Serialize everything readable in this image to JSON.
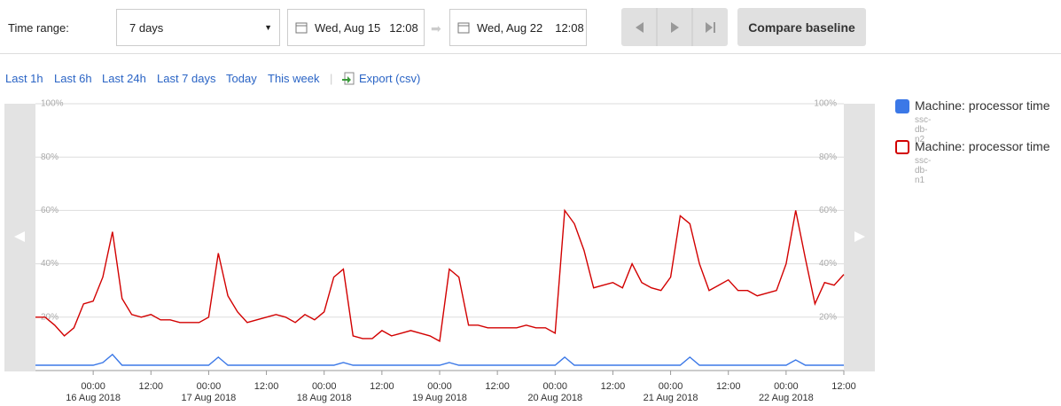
{
  "toolbar": {
    "time_range_label": "Time range:",
    "range_select": "7 days",
    "start_date": "Wed, Aug 15",
    "start_time": "12:08",
    "end_date": "Wed, Aug 22",
    "end_time": "12:08",
    "compare_button": "Compare baseline"
  },
  "quick_links": [
    "Last 1h",
    "Last 6h",
    "Last 24h",
    "Last 7 days",
    "Today",
    "This week"
  ],
  "export_link": "Export (csv)",
  "chart_data": {
    "type": "line",
    "x": [
      "2018-08-15 12:00",
      "2018-08-15 14:00",
      "2018-08-15 16:00",
      "2018-08-15 18:00",
      "2018-08-15 20:00",
      "2018-08-15 22:00",
      "2018-08-16 00:00",
      "2018-08-16 02:00",
      "2018-08-16 04:00",
      "2018-08-16 06:00",
      "2018-08-16 08:00",
      "2018-08-16 10:00",
      "2018-08-16 12:00",
      "2018-08-16 14:00",
      "2018-08-16 16:00",
      "2018-08-16 18:00",
      "2018-08-16 20:00",
      "2018-08-16 22:00",
      "2018-08-17 00:00",
      "2018-08-17 02:00",
      "2018-08-17 04:00",
      "2018-08-17 06:00",
      "2018-08-17 08:00",
      "2018-08-17 10:00",
      "2018-08-17 12:00",
      "2018-08-17 14:00",
      "2018-08-17 16:00",
      "2018-08-17 18:00",
      "2018-08-17 20:00",
      "2018-08-17 22:00",
      "2018-08-18 00:00",
      "2018-08-18 02:00",
      "2018-08-18 04:00",
      "2018-08-18 06:00",
      "2018-08-18 08:00",
      "2018-08-18 10:00",
      "2018-08-18 12:00",
      "2018-08-18 14:00",
      "2018-08-18 16:00",
      "2018-08-18 18:00",
      "2018-08-18 20:00",
      "2018-08-18 22:00",
      "2018-08-19 00:00",
      "2018-08-19 02:00",
      "2018-08-19 04:00",
      "2018-08-19 06:00",
      "2018-08-19 08:00",
      "2018-08-19 10:00",
      "2018-08-19 12:00",
      "2018-08-19 14:00",
      "2018-08-19 16:00",
      "2018-08-19 18:00",
      "2018-08-19 20:00",
      "2018-08-19 22:00",
      "2018-08-20 00:00",
      "2018-08-20 02:00",
      "2018-08-20 04:00",
      "2018-08-20 06:00",
      "2018-08-20 08:00",
      "2018-08-20 10:00",
      "2018-08-20 12:00",
      "2018-08-20 14:00",
      "2018-08-20 16:00",
      "2018-08-20 18:00",
      "2018-08-20 20:00",
      "2018-08-20 22:00",
      "2018-08-21 00:00",
      "2018-08-21 02:00",
      "2018-08-21 04:00",
      "2018-08-21 06:00",
      "2018-08-21 08:00",
      "2018-08-21 10:00",
      "2018-08-21 12:00",
      "2018-08-21 14:00",
      "2018-08-21 16:00",
      "2018-08-21 18:00",
      "2018-08-21 20:00",
      "2018-08-21 22:00",
      "2018-08-22 00:00",
      "2018-08-22 02:00",
      "2018-08-22 04:00",
      "2018-08-22 06:00",
      "2018-08-22 08:00",
      "2018-08-22 10:00",
      "2018-08-22 12:00"
    ],
    "series": [
      {
        "name": "Machine: processor time",
        "instance": "ssc-db-n2",
        "color": "#3b78e7",
        "marker": "filled",
        "values": [
          2,
          2,
          2,
          2,
          2,
          2,
          2,
          3,
          6,
          2,
          2,
          2,
          2,
          2,
          2,
          2,
          2,
          2,
          2,
          5,
          2,
          2,
          2,
          2,
          2,
          2,
          2,
          2,
          2,
          2,
          2,
          2,
          3,
          2,
          2,
          2,
          2,
          2,
          2,
          2,
          2,
          2,
          2,
          3,
          2,
          2,
          2,
          2,
          2,
          2,
          2,
          2,
          2,
          2,
          2,
          5,
          2,
          2,
          2,
          2,
          2,
          2,
          2,
          2,
          2,
          2,
          2,
          2,
          5,
          2,
          2,
          2,
          2,
          2,
          2,
          2,
          2,
          2,
          2,
          4,
          2,
          2,
          2,
          2,
          2
        ]
      },
      {
        "name": "Machine: processor time",
        "instance": "ssc-db-n1",
        "color": "#d20000",
        "marker": "hollow",
        "values": [
          20,
          20,
          17,
          13,
          16,
          25,
          26,
          35,
          52,
          27,
          21,
          20,
          21,
          19,
          19,
          18,
          18,
          18,
          20,
          44,
          28,
          22,
          18,
          19,
          20,
          21,
          20,
          18,
          21,
          19,
          22,
          35,
          38,
          13,
          12,
          12,
          15,
          13,
          14,
          15,
          14,
          13,
          11,
          38,
          35,
          17,
          17,
          16,
          16,
          16,
          16,
          17,
          16,
          16,
          14,
          60,
          55,
          45,
          31,
          32,
          33,
          31,
          40,
          33,
          31,
          30,
          35,
          58,
          55,
          40,
          30,
          32,
          34,
          30,
          30,
          28,
          29,
          30,
          40,
          60,
          42,
          25,
          33,
          32,
          36
        ]
      }
    ],
    "xlim": [
      "2018-08-15 12:00",
      "2018-08-22 12:00"
    ],
    "xticks": [
      {
        "value": "2018-08-16 00:00",
        "label": "00:00\n16 Aug 2018"
      },
      {
        "value": "2018-08-16 12:00",
        "label": "12:00"
      },
      {
        "value": "2018-08-17 00:00",
        "label": "00:00\n17 Aug 2018"
      },
      {
        "value": "2018-08-17 12:00",
        "label": "12:00"
      },
      {
        "value": "2018-08-18 00:00",
        "label": "00:00\n18 Aug 2018"
      },
      {
        "value": "2018-08-18 12:00",
        "label": "12:00"
      },
      {
        "value": "2018-08-19 00:00",
        "label": "00:00\n19 Aug 2018"
      },
      {
        "value": "2018-08-19 12:00",
        "label": "12:00"
      },
      {
        "value": "2018-08-20 00:00",
        "label": "00:00\n20 Aug 2018"
      },
      {
        "value": "2018-08-20 12:00",
        "label": "12:00"
      },
      {
        "value": "2018-08-21 00:00",
        "label": "00:00\n21 Aug 2018"
      },
      {
        "value": "2018-08-21 12:00",
        "label": "12:00"
      },
      {
        "value": "2018-08-22 00:00",
        "label": "00:00\n22 Aug 2018"
      },
      {
        "value": "2018-08-22 12:00",
        "label": "12:00"
      }
    ],
    "ylim": [
      0,
      100
    ],
    "yticks": [
      {
        "value": 20,
        "label": "20%"
      },
      {
        "value": 40,
        "label": "40%"
      },
      {
        "value": 60,
        "label": "60%"
      },
      {
        "value": 80,
        "label": "80%"
      },
      {
        "value": 100,
        "label": "100%"
      }
    ],
    "grid": true
  }
}
